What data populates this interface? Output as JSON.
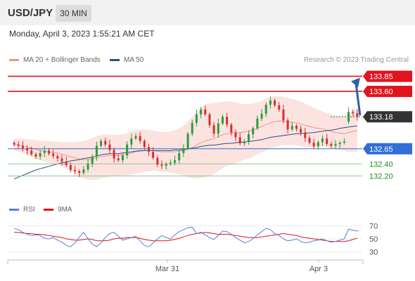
{
  "header": {
    "pair": "USD/JPY",
    "timeframe": "30 MIN"
  },
  "datetime": "Monday, April 3, 2023 1:55:21 AM CET",
  "legend": {
    "ma20_bb": {
      "label": "MA 20 + Bollinger Bands",
      "color": "#f0948c"
    },
    "ma50": {
      "label": "MA 50",
      "color": "#264f8c"
    }
  },
  "credit": "Research © 2023 Trading Central",
  "indicator_legend": {
    "rsi": {
      "label": "RSI",
      "color": "#5b7fd6"
    },
    "ma9": {
      "label": "9MA",
      "color": "#e0141e"
    }
  },
  "colors": {
    "up": "#2a9d3a",
    "down": "#d32f2f",
    "resistance": "#e0141e",
    "pivot": "#2f6fd6",
    "support": "#1f8a1f",
    "current": "#333333",
    "arrow": "#2f5fa8"
  },
  "chart_data": [
    {
      "type": "candlestick",
      "x_ticks": [
        "Mar 31",
        "Apr 3"
      ],
      "ylim": [
        131.95,
        133.95
      ],
      "levels": [
        {
          "label": "133.85",
          "value": 133.85,
          "kind": "resistance"
        },
        {
          "label": "133.60",
          "value": 133.6,
          "kind": "resistance"
        },
        {
          "label": "133.18",
          "value": 133.18,
          "kind": "current"
        },
        {
          "label": "132.65",
          "value": 132.65,
          "kind": "pivot"
        },
        {
          "label": "132.40",
          "value": 132.4,
          "kind": "support"
        },
        {
          "label": "132.20",
          "value": 132.2,
          "kind": "support"
        }
      ],
      "projection": {
        "from": 133.18,
        "to": 133.85
      },
      "close": [
        132.72,
        132.7,
        132.66,
        132.62,
        132.56,
        132.52,
        132.58,
        132.62,
        132.57,
        132.53,
        132.49,
        132.44,
        132.38,
        132.3,
        132.28,
        132.25,
        132.31,
        132.4,
        132.52,
        132.7,
        132.78,
        132.72,
        132.63,
        132.49,
        132.46,
        132.54,
        132.72,
        132.82,
        132.86,
        132.78,
        132.68,
        132.6,
        132.5,
        132.39,
        132.37,
        132.4,
        132.42,
        132.46,
        132.58,
        132.66,
        132.9,
        133.08,
        133.22,
        133.3,
        133.22,
        133.04,
        132.9,
        133.07,
        133.18,
        133.05,
        132.92,
        132.84,
        132.74,
        132.77,
        132.89,
        132.99,
        133.15,
        133.23,
        133.38,
        133.45,
        133.37,
        133.3,
        133.12,
        132.97,
        133.03,
        132.98,
        132.92,
        132.83,
        132.75,
        132.69,
        132.76,
        132.82,
        132.73,
        132.7,
        132.73,
        132.75,
        132.77,
        133.26,
        133.24,
        133.18
      ],
      "open": [
        132.75,
        132.72,
        132.7,
        132.66,
        132.62,
        132.56,
        132.52,
        132.58,
        132.62,
        132.57,
        132.53,
        132.49,
        132.44,
        132.38,
        132.3,
        132.28,
        132.25,
        132.31,
        132.4,
        132.52,
        132.7,
        132.78,
        132.72,
        132.63,
        132.49,
        132.46,
        132.54,
        132.72,
        132.82,
        132.86,
        132.78,
        132.68,
        132.6,
        132.5,
        132.39,
        132.37,
        132.4,
        132.42,
        132.46,
        132.58,
        132.66,
        132.9,
        133.08,
        133.22,
        133.3,
        133.22,
        133.04,
        132.9,
        133.07,
        133.18,
        133.05,
        132.92,
        132.84,
        132.74,
        132.77,
        132.89,
        132.99,
        133.15,
        133.23,
        133.38,
        133.45,
        133.37,
        133.3,
        133.12,
        132.97,
        133.03,
        132.98,
        132.92,
        132.83,
        132.75,
        132.69,
        132.76,
        132.82,
        132.73,
        132.7,
        132.73,
        132.75,
        133.1,
        133.26,
        133.24
      ],
      "ma20": [
        132.72,
        132.71,
        132.7,
        132.68,
        132.66,
        132.64,
        132.62,
        132.61,
        132.6,
        132.59,
        132.58,
        132.56,
        132.54,
        132.52,
        132.5,
        132.48,
        132.47,
        132.47,
        132.48,
        132.5,
        132.52,
        132.53,
        132.54,
        132.54,
        132.54,
        132.55,
        132.56,
        132.58,
        132.6,
        132.61,
        132.62,
        132.62,
        132.62,
        132.61,
        132.6,
        132.6,
        132.6,
        132.6,
        132.61,
        132.62,
        132.64,
        132.67,
        132.71,
        132.75,
        132.78,
        132.8,
        132.82,
        132.85,
        132.88,
        132.9,
        132.91,
        132.92,
        132.92,
        132.93,
        132.94,
        132.96,
        132.99,
        133.02,
        133.05,
        133.08,
        133.1,
        133.11,
        133.11,
        133.1,
        133.09,
        133.08,
        133.06,
        133.04,
        133.02,
        133.0,
        132.99,
        132.98,
        132.96,
        132.94,
        132.92,
        132.91,
        132.9,
        132.92,
        132.94,
        132.95
      ],
      "bb_upper": [
        132.82,
        132.82,
        132.82,
        132.81,
        132.8,
        132.79,
        132.78,
        132.78,
        132.78,
        132.77,
        132.77,
        132.76,
        132.76,
        132.76,
        132.76,
        132.77,
        132.78,
        132.8,
        132.83,
        132.86,
        132.88,
        132.89,
        132.89,
        132.88,
        132.88,
        132.89,
        132.91,
        132.94,
        132.96,
        132.97,
        132.97,
        132.96,
        132.95,
        132.94,
        132.93,
        132.93,
        132.94,
        132.96,
        132.99,
        133.03,
        133.1,
        133.18,
        133.26,
        133.33,
        133.38,
        133.4,
        133.41,
        133.42,
        133.43,
        133.43,
        133.43,
        133.42,
        133.4,
        133.39,
        133.39,
        133.4,
        133.42,
        133.45,
        133.48,
        133.5,
        133.52,
        133.52,
        133.51,
        133.49,
        133.47,
        133.45,
        133.43,
        133.4,
        133.36,
        133.33,
        133.3,
        133.27,
        133.24,
        133.22,
        133.2,
        133.19,
        133.18,
        133.24,
        133.28,
        133.3
      ],
      "bb_lower": [
        132.62,
        132.6,
        132.58,
        132.55,
        132.52,
        132.49,
        132.46,
        132.44,
        132.42,
        132.41,
        132.39,
        132.36,
        132.32,
        132.28,
        132.24,
        132.19,
        132.16,
        132.14,
        132.13,
        132.14,
        132.16,
        132.17,
        132.19,
        132.2,
        132.2,
        132.21,
        132.21,
        132.22,
        132.24,
        132.25,
        132.27,
        132.28,
        132.29,
        132.28,
        132.27,
        132.27,
        132.26,
        132.24,
        132.23,
        132.21,
        132.18,
        132.16,
        132.16,
        132.17,
        132.18,
        132.2,
        132.23,
        132.28,
        132.33,
        132.37,
        132.39,
        132.42,
        132.44,
        132.47,
        132.49,
        132.52,
        132.56,
        132.59,
        132.62,
        132.66,
        132.68,
        132.7,
        132.71,
        132.71,
        132.71,
        132.71,
        132.69,
        132.68,
        132.68,
        132.67,
        132.68,
        132.69,
        132.68,
        132.66,
        132.64,
        132.63,
        132.62,
        132.6,
        132.6,
        132.6
      ],
      "ma50": [
        132.15,
        132.18,
        132.21,
        132.24,
        132.27,
        132.3,
        132.32,
        132.34,
        132.36,
        132.38,
        132.4,
        132.42,
        132.43,
        132.45,
        132.46,
        132.47,
        132.49,
        132.5,
        132.51,
        132.53,
        132.55,
        132.56,
        132.57,
        132.57,
        132.57,
        132.58,
        132.59,
        132.6,
        132.61,
        132.62,
        132.62,
        132.62,
        132.62,
        132.62,
        132.62,
        132.62,
        132.62,
        132.63,
        132.63,
        132.64,
        132.65,
        132.66,
        132.67,
        132.69,
        132.7,
        132.71,
        132.71,
        132.72,
        132.73,
        132.74,
        132.74,
        132.75,
        132.76,
        132.76,
        132.77,
        132.78,
        132.79,
        132.8,
        132.82,
        132.84,
        132.85,
        132.86,
        132.87,
        132.88,
        132.89,
        132.9,
        132.9,
        132.91,
        132.91,
        132.92,
        132.93,
        132.94,
        132.95,
        132.96,
        132.97,
        132.99,
        133.0,
        133.01,
        133.02,
        133.03
      ]
    },
    {
      "type": "line",
      "name": "RSI",
      "x_ticks": [
        "Mar 31",
        "Apr 3"
      ],
      "yticks": [
        70,
        50,
        30
      ],
      "ylim": [
        20,
        80
      ],
      "rsi": [
        66,
        64,
        60,
        57,
        55,
        56,
        55,
        51,
        50,
        52,
        48,
        45,
        40,
        38,
        44,
        52,
        60,
        50,
        42,
        38,
        44,
        52,
        58,
        60,
        54,
        48,
        50,
        52,
        54,
        47,
        40,
        38,
        44,
        50,
        55,
        52,
        50,
        56,
        61,
        64,
        67,
        68,
        58,
        60,
        56,
        52,
        49,
        55,
        62,
        61,
        57,
        52,
        48,
        44,
        46,
        50,
        56,
        61,
        66,
        64,
        58,
        55,
        50,
        47,
        48,
        50,
        46,
        44,
        45,
        47,
        48,
        50,
        47,
        45,
        46,
        48,
        50,
        65,
        63,
        62
      ],
      "ma9": [
        60,
        60,
        59,
        58,
        58,
        57,
        57,
        56,
        55,
        54,
        53,
        52,
        50,
        49,
        48,
        48,
        49,
        50,
        49,
        47,
        47,
        47,
        48,
        50,
        51,
        51,
        52,
        52,
        52,
        51,
        49,
        48,
        47,
        47,
        47,
        47,
        48,
        49,
        51,
        53,
        55,
        57,
        58,
        59,
        60,
        59,
        58,
        57,
        57,
        57,
        56,
        55,
        54,
        53,
        52,
        52,
        52,
        53,
        54,
        55,
        56,
        57,
        58,
        57,
        56,
        55,
        53,
        52,
        51,
        50,
        49,
        48,
        47,
        46,
        46,
        46,
        46,
        47,
        49,
        51
      ]
    }
  ]
}
